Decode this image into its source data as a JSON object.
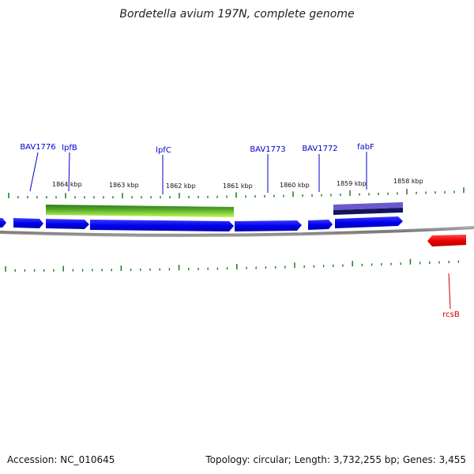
{
  "title": "Bordetella avium 197N, complete genome",
  "footer": {
    "accession": "Accession: NC_010645",
    "summary": "Topology: circular; Length: 3,732,255 bp; Genes: 3,455"
  },
  "scale_labels": [
    "1864 kbp",
    "1863 kbp",
    "1862 kbp",
    "1861 kbp",
    "1860 kbp",
    "1859 kbp",
    "1858 kbp"
  ],
  "gene_labels": [
    {
      "text": "BAV1776",
      "color": "#0000cc"
    },
    {
      "text": "lpfB",
      "color": "#0000cc"
    },
    {
      "text": "lpfC",
      "color": "#0000cc"
    },
    {
      "text": "BAV1773",
      "color": "#0000cc"
    },
    {
      "text": "BAV1772",
      "color": "#0000cc"
    },
    {
      "text": "fabF",
      "color": "#0000cc"
    },
    {
      "text": "rcsB",
      "color": "#cc0000"
    }
  ],
  "colors": {
    "gene_forward": "#0000ee",
    "gene_reverse": "#ee0000",
    "tick": "#1a7a1a",
    "backbone": "#888888",
    "domain_green_dark": "#2e7d1e",
    "domain_green_light": "#b6f05a",
    "domain_purple": "#6a5acd",
    "domain_navy": "#14145a"
  }
}
